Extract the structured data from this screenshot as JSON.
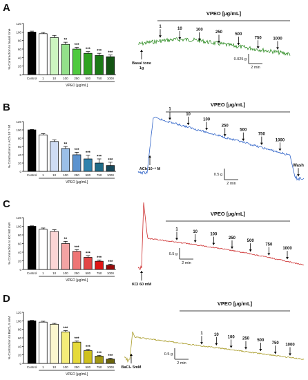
{
  "chart_data": [
    {
      "panel": "A",
      "type": "bar",
      "categories": [
        "Control",
        "1",
        "10",
        "100",
        "250",
        "500",
        "750",
        "1000"
      ],
      "values": [
        100,
        96,
        87,
        71,
        60,
        50,
        45,
        42
      ],
      "errors": [
        2,
        3,
        5,
        5,
        4,
        4,
        5,
        4
      ],
      "significance": [
        "",
        "",
        "",
        "**",
        "***",
        "***",
        "***",
        "***"
      ],
      "colors": [
        "#000000",
        "#ffffff",
        "#ccf5c0",
        "#93e08a",
        "#4fca3e",
        "#2fa321",
        "#1c7a16",
        "#135412"
      ],
      "ylabel": "% Contraction to basal tone",
      "xlabel": "VPEO [µg/mL]",
      "yticks": [
        0,
        20,
        40,
        60,
        80,
        100,
        120
      ],
      "ylim": [
        0,
        120
      ],
      "trace": {
        "color": "#2a8a1f",
        "header": "VPEO [µg/mL]",
        "doses": [
          "1",
          "10",
          "100",
          "250",
          "500",
          "750",
          "1000"
        ],
        "start_label": "Basal tone",
        "start_sub": "1g",
        "scale_y": "0.025 g",
        "scale_x": "2 min"
      }
    },
    {
      "panel": "B",
      "type": "bar",
      "categories": [
        "Control",
        "1",
        "10",
        "100",
        "250",
        "500",
        "750",
        "1000"
      ],
      "values": [
        100,
        88,
        72,
        55,
        40,
        30,
        20,
        14
      ],
      "errors": [
        1,
        3,
        4,
        5,
        6,
        9,
        10,
        8
      ],
      "significance": [
        "",
        "",
        "",
        "**",
        "***",
        "***",
        "***",
        "***"
      ],
      "colors": [
        "#000000",
        "#ffffff",
        "#cfdcf4",
        "#9bbfe8",
        "#5c93cf",
        "#2f82ad",
        "#1f6c89",
        "#18485a"
      ],
      "ylabel": "% Contraction to ACh 10⁻⁶ M",
      "xlabel": "VPEO [µg/mL]",
      "yticks": [
        0,
        20,
        40,
        60,
        80,
        100,
        120
      ],
      "ylim": [
        0,
        120
      ],
      "trace": {
        "color": "#2f63c8",
        "header": "VPEO [µg/mL]",
        "doses": [
          "1",
          "10",
          "100",
          "250",
          "500",
          "750",
          "1000",
          "Wash"
        ],
        "start_label": "ACh 10⁻⁶ M",
        "scale_y": "0.5 g",
        "scale_x": "2 min"
      }
    },
    {
      "panel": "C",
      "type": "bar",
      "categories": [
        "Control",
        "1",
        "10",
        "100",
        "250",
        "500",
        "750",
        "1000"
      ],
      "values": [
        100,
        93,
        88,
        60,
        42,
        28,
        19,
        10
      ],
      "errors": [
        1,
        3,
        4,
        5,
        4,
        4,
        3,
        2
      ],
      "significance": [
        "",
        "",
        "",
        "**",
        "***",
        "***",
        "***",
        "***"
      ],
      "colors": [
        "#000000",
        "#ffffff",
        "#fbd5d5",
        "#f3a3a3",
        "#ee7575",
        "#e34545",
        "#e01515",
        "#990a0a"
      ],
      "ylabel": "% Contraction to KCl 60 mM",
      "xlabel": "VPEO [µg/mL]",
      "yticks": [
        0,
        20,
        40,
        60,
        80,
        100,
        120
      ],
      "ylim": [
        0,
        120
      ],
      "trace": {
        "color": "#cc2a2a",
        "header": "VPEO [µg/mL]",
        "doses": [
          "1",
          "10",
          "100",
          "250",
          "500",
          "750",
          "1000"
        ],
        "start_label": "KCl 60 mM",
        "scale_y": "0.5 g",
        "scale_x": "2 min"
      }
    },
    {
      "panel": "D",
      "type": "bar",
      "categories": [
        "Control",
        "1",
        "10",
        "100",
        "250",
        "500",
        "750",
        "1000"
      ],
      "values": [
        100,
        97,
        92,
        74,
        50,
        30,
        17,
        10
      ],
      "errors": [
        1,
        2,
        2,
        3,
        3,
        3,
        2,
        2
      ],
      "significance": [
        "",
        "",
        "",
        "***",
        "***",
        "***",
        "***",
        "***"
      ],
      "colors": [
        "#000000",
        "#ffffff",
        "#fbf7cf",
        "#f4ec79",
        "#e6da3a",
        "#cfc11d",
        "#a29814",
        "#6c650c"
      ],
      "ylabel": "% Contraction to BaCl₂ 5 mM",
      "xlabel": "VPEO [µg/mL]",
      "yticks": [
        0,
        20,
        40,
        60,
        80,
        100,
        120
      ],
      "ylim": [
        0,
        120
      ],
      "trace": {
        "color": "#a89a25",
        "header": "VPEO [µg/mL]",
        "doses": [
          "1",
          "10",
          "100",
          "250",
          "500",
          "750",
          "1000"
        ],
        "start_label": "BaCl₂ 5mM",
        "scale_y": "0.5 g",
        "scale_x": "2 min"
      }
    }
  ]
}
